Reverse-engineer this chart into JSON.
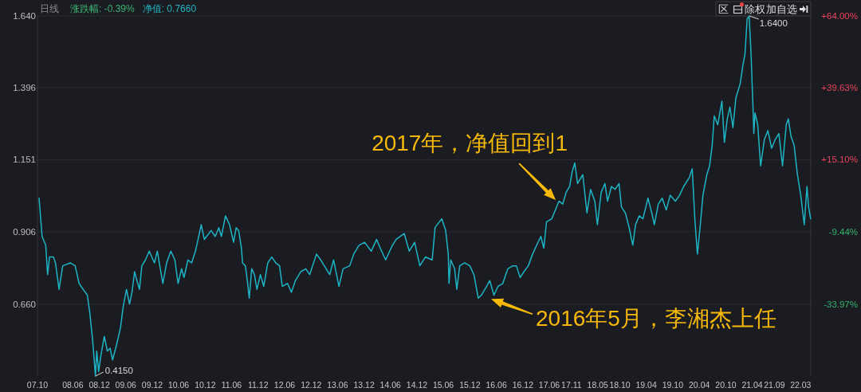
{
  "chart_data": {
    "type": "line",
    "color": "#1db4c5",
    "grid": "y",
    "xlim": [
      "2007-10-01",
      "2022-05-10"
    ],
    "ylim": [
      0.415,
      1.64
    ],
    "yticks": [
      {
        "value": 0.66,
        "label": "0.660"
      },
      0.906,
      1.151,
      1.396,
      {
        "value": 1.64,
        "label": "1.640"
      }
    ],
    "y2lim": [
      -58.5,
      64
    ],
    "y2ticks": [
      {
        "value": 64,
        "label": "+64.00%"
      },
      {
        "value": 39.63,
        "label": "+39.63%"
      },
      {
        "value": 15.1,
        "label": "+15.10%"
      },
      {
        "value": -9.44,
        "label": "-9.44%"
      },
      {
        "value": -33.97,
        "label": "-33.97%"
      }
    ],
    "xticks": [
      {
        "value": "2007-10",
        "label": "07.10"
      },
      {
        "value": "2008-06",
        "label": "08.06"
      },
      {
        "value": "2008-12",
        "label": "08.12"
      },
      {
        "value": "2009-06",
        "label": "09.06"
      },
      {
        "value": "2009-12",
        "label": "09.12"
      },
      {
        "value": "2010-06",
        "label": "10.06"
      },
      {
        "value": "2010-12",
        "label": "10.12"
      },
      {
        "value": "2011-06",
        "label": "11.06"
      },
      {
        "value": "2011-12",
        "label": "11.12"
      },
      {
        "value": "2012-06",
        "label": "12.06"
      },
      {
        "value": "2012-12",
        "label": "12.12"
      },
      {
        "value": "2013-06",
        "label": "13.06"
      },
      {
        "value": "2013-12",
        "label": "13.12"
      },
      {
        "value": "2014-06",
        "label": "14.06"
      },
      {
        "value": "2014-12",
        "label": "14.12"
      },
      {
        "value": "2015-06",
        "label": "15.06"
      },
      {
        "value": "2015-12",
        "label": "15.12"
      },
      {
        "value": "2016-06",
        "label": "16.06"
      },
      {
        "value": "2016-12",
        "label": "16.12"
      },
      {
        "value": "2017-06",
        "label": "17.06"
      },
      {
        "value": "2017-11",
        "label": "17.11"
      },
      {
        "value": "2018-05",
        "label": "18.05"
      },
      {
        "value": "2018-10",
        "label": "18.10"
      },
      {
        "value": "2019-04",
        "label": "19.04"
      },
      {
        "value": "2019-10",
        "label": "19.10"
      },
      {
        "value": "2020-04",
        "label": "20.04"
      },
      {
        "value": "2020-10",
        "label": "20.10"
      },
      {
        "value": "2021-04",
        "label": "21.04"
      },
      {
        "value": "2021-09",
        "label": "21.09"
      },
      {
        "value": "2022-03",
        "label": "22.03"
      }
    ],
    "x": [
      "2007-10-12",
      "2007-11-02",
      "2007-11-27",
      "2007-12-10",
      "2007-12-23",
      "2008-01-19",
      "2008-02-02",
      "2008-02-27",
      "2008-03-23",
      "2008-05-15",
      "2008-06-17",
      "2008-07-14",
      "2008-08-11",
      "2008-09-09",
      "2008-09-26",
      "2008-10-15",
      "2008-11-04",
      "2008-11-13",
      "2008-11-26",
      "2008-12-10",
      "2009-01-04",
      "2009-01-25",
      "2009-02-13",
      "2009-03-02",
      "2009-03-29",
      "2009-04-26",
      "2009-05-14",
      "2009-06-06",
      "2009-06-27",
      "2009-07-14",
      "2009-08-01",
      "2009-08-17",
      "2009-09-04",
      "2009-09-20",
      "2009-10-15",
      "2009-11-10",
      "2009-12-16",
      "2010-01-05",
      "2010-01-22",
      "2010-02-12",
      "2010-03-10",
      "2010-04-08",
      "2010-05-06",
      "2010-05-28",
      "2010-06-21",
      "2010-07-08",
      "2010-08-04",
      "2010-08-29",
      "2010-09-25",
      "2010-10-13",
      "2010-11-04",
      "2010-11-25",
      "2011-01-11",
      "2011-02-08",
      "2011-03-05",
      "2011-03-23",
      "2011-04-20",
      "2011-05-18",
      "2011-06-15",
      "2011-07-03",
      "2011-07-20",
      "2011-08-08",
      "2011-08-16",
      "2011-09-04",
      "2011-09-18",
      "2011-10-01",
      "2011-10-18",
      "2011-11-06",
      "2011-11-23",
      "2011-12-17",
      "2012-01-09",
      "2012-02-06",
      "2012-03-04",
      "2012-04-01",
      "2012-04-27",
      "2012-05-16",
      "2012-06-21",
      "2012-07-18",
      "2012-08-15",
      "2012-09-20",
      "2012-10-25",
      "2012-11-21",
      "2013-01-07",
      "2013-02-05",
      "2013-03-02",
      "2013-04-08",
      "2013-05-05",
      "2013-06-11",
      "2013-07-09",
      "2013-08-24",
      "2013-09-21",
      "2013-10-27",
      "2013-12-05",
      "2014-01-20",
      "2014-02-26",
      "2014-03-23",
      "2014-04-29",
      "2014-06-15",
      "2014-07-11",
      "2014-09-04",
      "2014-10-09",
      "2014-11-15",
      "2014-12-21",
      "2015-01-28",
      "2015-03-16",
      "2015-04-05",
      "2015-05-21",
      "2015-06-17",
      "2015-07-05",
      "2015-07-10",
      "2015-07-22",
      "2015-08-18",
      "2015-09-02",
      "2015-09-22",
      "2015-10-26",
      "2015-12-01",
      "2015-12-29",
      "2016-01-28",
      "2016-02-18",
      "2016-03-26",
      "2016-04-16",
      "2016-05-15",
      "2016-06-12",
      "2016-07-15",
      "2016-08-19",
      "2016-09-22",
      "2016-10-17",
      "2016-11-12",
      "2016-12-08",
      "2017-01-07",
      "2017-02-06",
      "2017-03-06",
      "2017-04-04",
      "2017-04-24",
      "2017-05-13",
      "2017-06-18",
      "2017-07-13",
      "2017-08-07",
      "2017-09-02",
      "2017-09-25",
      "2017-10-19",
      "2017-11-06",
      "2017-11-24",
      "2017-12-13",
      "2018-01-18",
      "2018-02-16",
      "2018-03-13",
      "2018-04-11",
      "2018-04-29",
      "2018-05-25",
      "2018-06-20",
      "2018-07-08",
      "2018-08-04",
      "2018-08-29",
      "2018-09-25",
      "2018-10-12",
      "2018-11-08",
      "2018-12-04",
      "2018-12-29",
      "2019-01-17",
      "2019-02-12",
      "2019-03-09",
      "2019-04-13",
      "2019-05-09",
      "2019-05-27",
      "2019-06-23",
      "2019-07-20",
      "2019-08-17",
      "2019-09-13",
      "2019-10-19",
      "2019-11-17",
      "2019-12-15",
      "2020-01-23",
      "2020-02-12",
      "2020-03-01",
      "2020-03-19",
      "2020-04-08",
      "2020-04-26",
      "2020-05-23",
      "2020-06-11",
      "2020-06-29",
      "2020-07-13",
      "2020-08-06",
      "2020-09-04",
      "2020-09-21",
      "2020-10-11",
      "2020-10-29",
      "2020-11-19",
      "2020-12-09",
      "2021-01-08",
      "2021-01-26",
      "2021-02-10",
      "2021-02-25",
      "2021-03-11",
      "2021-03-24",
      "2021-04-07",
      "2021-04-12",
      "2021-04-20",
      "2021-05-09",
      "2021-05-29",
      "2021-06-24",
      "2021-07-18",
      "2021-08-13",
      "2021-09-07",
      "2021-10-02",
      "2021-10-27",
      "2021-11-22",
      "2021-12-06",
      "2021-12-25",
      "2022-01-15",
      "2022-02-07",
      "2022-03-02",
      "2022-03-26",
      "2022-04-14",
      "2022-04-25",
      "2022-05-09"
    ],
    "values": [
      1.02,
      0.89,
      0.86,
      0.76,
      0.82,
      0.82,
      0.8,
      0.71,
      0.79,
      0.8,
      0.79,
      0.73,
      0.71,
      0.69,
      0.63,
      0.54,
      0.415,
      0.5,
      0.43,
      0.48,
      0.55,
      0.5,
      0.51,
      0.47,
      0.52,
      0.58,
      0.65,
      0.71,
      0.66,
      0.7,
      0.77,
      0.74,
      0.71,
      0.79,
      0.81,
      0.84,
      0.8,
      0.84,
      0.79,
      0.73,
      0.8,
      0.84,
      0.81,
      0.73,
      0.78,
      0.75,
      0.81,
      0.8,
      0.84,
      0.88,
      0.93,
      0.88,
      0.91,
      0.89,
      0.92,
      0.89,
      0.96,
      0.93,
      0.87,
      0.92,
      0.91,
      0.85,
      0.8,
      0.79,
      0.74,
      0.68,
      0.78,
      0.76,
      0.71,
      0.76,
      0.72,
      0.8,
      0.82,
      0.8,
      0.79,
      0.72,
      0.73,
      0.7,
      0.74,
      0.77,
      0.78,
      0.76,
      0.83,
      0.81,
      0.79,
      0.76,
      0.81,
      0.72,
      0.78,
      0.79,
      0.83,
      0.86,
      0.87,
      0.84,
      0.88,
      0.85,
      0.81,
      0.86,
      0.88,
      0.9,
      0.84,
      0.87,
      0.79,
      0.82,
      0.81,
      0.92,
      0.95,
      0.91,
      0.83,
      0.73,
      0.81,
      0.78,
      0.71,
      0.79,
      0.8,
      0.79,
      0.76,
      0.68,
      0.69,
      0.72,
      0.74,
      0.69,
      0.72,
      0.73,
      0.78,
      0.79,
      0.79,
      0.75,
      0.77,
      0.79,
      0.83,
      0.86,
      0.89,
      0.85,
      0.94,
      0.95,
      0.98,
      1.01,
      1.0,
      1.04,
      1.06,
      1.11,
      1.14,
      1.07,
      1.1,
      0.97,
      1.05,
      1.01,
      0.93,
      1.04,
      1.07,
      1.01,
      1.06,
      1.05,
      1.07,
      0.99,
      0.97,
      0.92,
      0.86,
      0.93,
      0.96,
      0.95,
      1.02,
      0.97,
      0.93,
      1.0,
      1.02,
      0.98,
      1.03,
      1.01,
      1.03,
      1.06,
      1.09,
      1.12,
      0.95,
      0.83,
      0.93,
      1.03,
      1.1,
      1.13,
      1.2,
      1.3,
      1.27,
      1.35,
      1.21,
      1.29,
      1.33,
      1.26,
      1.36,
      1.41,
      1.47,
      1.51,
      1.63,
      1.64,
      1.51,
      1.32,
      1.24,
      1.31,
      1.27,
      1.13,
      1.22,
      1.25,
      1.19,
      1.22,
      1.24,
      1.13,
      1.27,
      1.29,
      1.23,
      1.2,
      1.1,
      1.03,
      0.93,
      1.06,
      0.99,
      0.95
    ],
    "annotations": [
      "日线",
      "涨跌幅: -0.39%",
      "净值: 0.7660",
      "区",
      "除权",
      "加自选",
      {
        "text": "0.4150",
        "x": "2008-11-04",
        "y": 0.415
      },
      {
        "text": "1.6400",
        "x": "2021-03-11",
        "y": 1.64
      },
      {
        "text": "2017年，净值回到1",
        "x": "2017-08-01",
        "y": 1.0
      },
      {
        "text": "2016年5月，李湘杰上任",
        "x": "2016-05-01",
        "y": 0.68
      }
    ]
  }
}
